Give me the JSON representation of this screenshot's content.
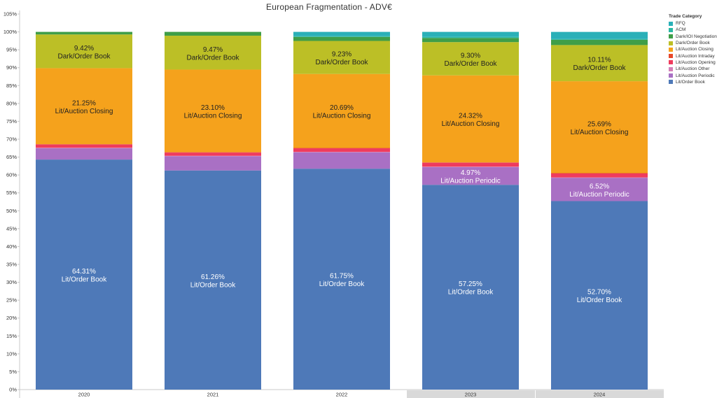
{
  "chart_data": {
    "type": "bar",
    "stacked": true,
    "title": "European Fragmentation -  ADV€",
    "ylim": [
      0,
      105
    ],
    "yticks": [
      "0%",
      "5%",
      "10%",
      "15%",
      "20%",
      "25%",
      "30%",
      "35%",
      "40%",
      "45%",
      "50%",
      "55%",
      "60%",
      "65%",
      "70%",
      "75%",
      "80%",
      "85%",
      "90%",
      "95%",
      "100%",
      "105%"
    ],
    "categories": [
      "2020",
      "2021",
      "2022",
      "2023",
      "2024"
    ],
    "highlighted_categories": [
      "2023",
      "2024"
    ],
    "legend_title": "Trade Category",
    "legend_position": "right",
    "series": [
      {
        "name": "Lit/Order Book",
        "color": "#4e79b8",
        "values": [
          64.31,
          61.26,
          61.75,
          57.25,
          52.7
        ],
        "labels": [
          "64.31%",
          "61.26%",
          "61.75%",
          "57.25%",
          "52.70%"
        ]
      },
      {
        "name": "Lit/Auction Periodic",
        "color": "#a970c4",
        "values": [
          3.2,
          4.0,
          4.6,
          4.97,
          6.52
        ],
        "labels": [
          "",
          "",
          "",
          "4.97%",
          "6.52%"
        ]
      },
      {
        "name": "Lit/Auction Other",
        "color": "#d47fb6",
        "values": [
          0.1,
          0.1,
          0.1,
          0.1,
          0.1
        ],
        "labels": [
          "",
          "",
          "",
          "",
          ""
        ]
      },
      {
        "name": "Lit/Auction Opening",
        "color": "#ef3b5d",
        "values": [
          0.9,
          0.9,
          1.0,
          1.1,
          1.1
        ],
        "labels": [
          "",
          "",
          "",
          "",
          ""
        ]
      },
      {
        "name": "Lit/Auction Intraday",
        "color": "#e8482b",
        "values": [
          0.1,
          0.1,
          0.1,
          0.1,
          0.1
        ],
        "labels": [
          "",
          "",
          "",
          "",
          ""
        ]
      },
      {
        "name": "Lit/Auction Closing",
        "color": "#f5a21c",
        "values": [
          21.25,
          23.1,
          20.69,
          24.32,
          25.69
        ],
        "labels": [
          "21.25%",
          "23.10%",
          "20.69%",
          "24.32%",
          "25.69%"
        ]
      },
      {
        "name": "Dark/Order Book",
        "color": "#bcbf26",
        "values": [
          9.42,
          9.47,
          9.23,
          9.3,
          10.11
        ],
        "labels": [
          "9.42%",
          "9.47%",
          "9.23%",
          "9.30%",
          "10.11%"
        ]
      },
      {
        "name": "Dark/IOI Negotiation",
        "color": "#3f9e48",
        "values": [
          0.72,
          1.07,
          1.13,
          1.16,
          1.47
        ],
        "labels": [
          "",
          "",
          "",
          "",
          ""
        ]
      },
      {
        "name": "ACM",
        "color": "#2bb8a4",
        "values": [
          0,
          0,
          0.2,
          0.3,
          0.2
        ],
        "labels": [
          "",
          "",
          "",
          "",
          ""
        ]
      },
      {
        "name": "RFQ",
        "color": "#2ab0b8",
        "values": [
          0,
          0,
          1.2,
          1.4,
          2.0
        ],
        "labels": [
          "",
          "",
          "",
          "",
          ""
        ]
      }
    ],
    "segment_label_colors": {
      "Lit/Order Book": "#ffffff",
      "Lit/Auction Periodic": "#ffffff",
      "Lit/Auction Closing": "#222222",
      "Dark/Order Book": "#222222"
    },
    "legend": [
      {
        "name": "RFQ",
        "color": "#2ab0b8"
      },
      {
        "name": "ACM",
        "color": "#2bb8a4"
      },
      {
        "name": "Dark/IOI Negotiation",
        "color": "#3f9e48"
      },
      {
        "name": "Dark/Order Book",
        "color": "#bcbf26"
      },
      {
        "name": "Lit/Auction Closing",
        "color": "#f5a21c"
      },
      {
        "name": "Lit/Auction Intraday",
        "color": "#e8482b"
      },
      {
        "name": "Lit/Auction Opening",
        "color": "#ef3b5d"
      },
      {
        "name": "Lit/Auction Other",
        "color": "#d47fb6"
      },
      {
        "name": "Lit/Auction Periodic",
        "color": "#a970c4"
      },
      {
        "name": "Lit/Order Book",
        "color": "#4e79b8"
      }
    ]
  }
}
